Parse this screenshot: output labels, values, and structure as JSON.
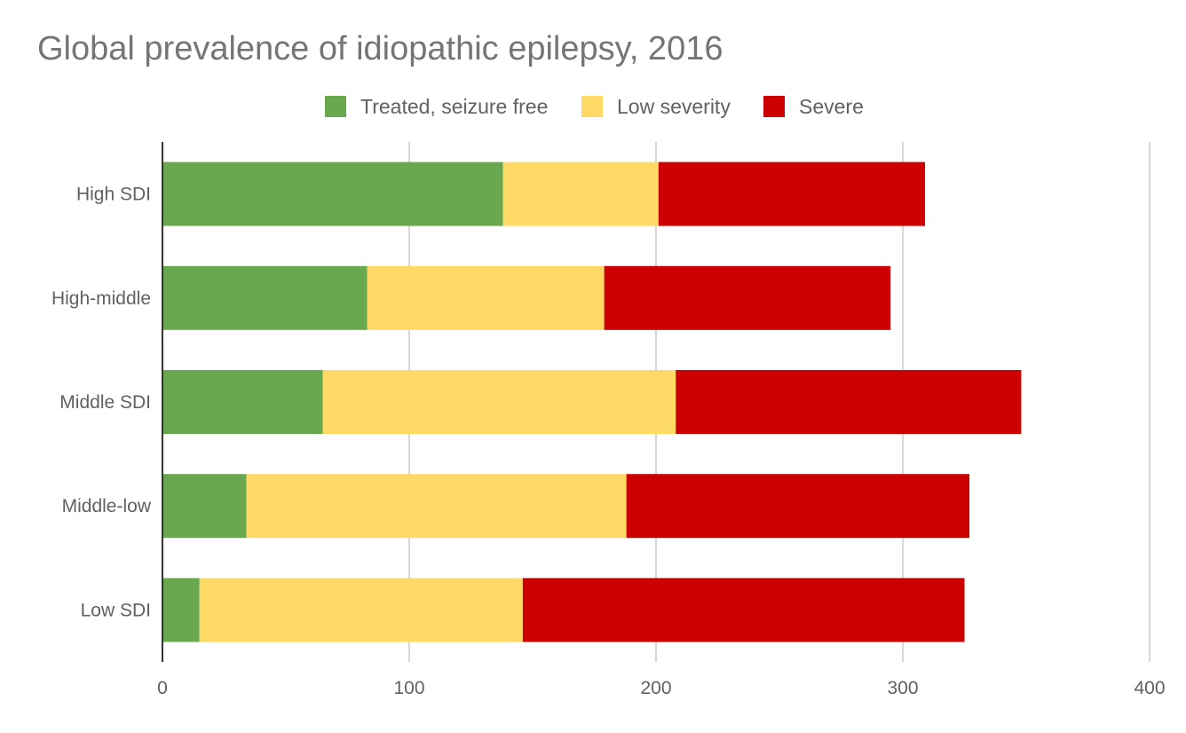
{
  "chart_data": {
    "type": "bar",
    "orientation": "horizontal",
    "stacked": true,
    "title": "Global prevalence of idiopathic epilepsy, 2016",
    "xlabel": "",
    "ylabel": "",
    "xlim": [
      0,
      400
    ],
    "x_ticks": [
      "0",
      "100",
      "200",
      "300",
      "400"
    ],
    "grid": true,
    "legend_position": "top",
    "categories": [
      "High SDI",
      "High-middle",
      "Middle SDI",
      "Middle-low",
      "Low SDI"
    ],
    "series": [
      {
        "name": "Treated, seizure free",
        "color": "#6aa84f",
        "values": [
          138,
          83,
          65,
          34,
          15
        ]
      },
      {
        "name": "Low severity",
        "color": "#ffd966",
        "values": [
          63,
          96,
          143,
          154,
          131
        ]
      },
      {
        "name": "Severe",
        "color": "#cc0000",
        "values": [
          108,
          116,
          140,
          139,
          179
        ]
      }
    ]
  }
}
